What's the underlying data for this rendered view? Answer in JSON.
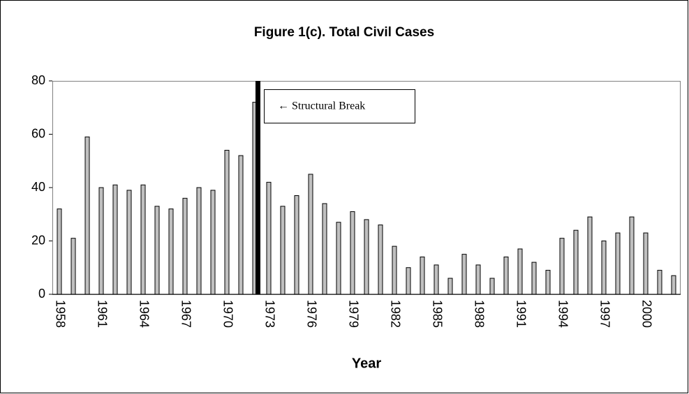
{
  "chart_data": {
    "type": "bar",
    "title": "Figure 1(c). Total Civil Cases",
    "x_label": "Year",
    "annotation": "← Structural Break",
    "categories": [
      "1958",
      null,
      null,
      "1961",
      null,
      null,
      "1964",
      null,
      null,
      "1967",
      null,
      null,
      "1970",
      null,
      null,
      "1973",
      null,
      null,
      "1976",
      null,
      null,
      "1979",
      null,
      null,
      "1982",
      null,
      null,
      "1985",
      null,
      null,
      "1988",
      null,
      null,
      "1991",
      null,
      null,
      "1994",
      null,
      null,
      "1997",
      null,
      null,
      "2000",
      null,
      null
    ],
    "values": [
      32,
      21,
      59,
      40,
      41,
      39,
      41,
      33,
      32,
      36,
      40,
      39,
      54,
      52,
      72,
      42,
      33,
      37,
      45,
      34,
      27,
      31,
      28,
      26,
      18,
      10,
      14,
      11,
      6,
      15,
      11,
      6,
      14,
      17,
      12,
      9,
      21,
      24,
      29,
      20,
      23,
      29,
      23,
      9,
      7
    ],
    "color": "#c0c0c0",
    "ylim": [
      0,
      80
    ],
    "yticks": [
      0,
      20,
      40,
      60,
      80
    ],
    "grid": false
  }
}
